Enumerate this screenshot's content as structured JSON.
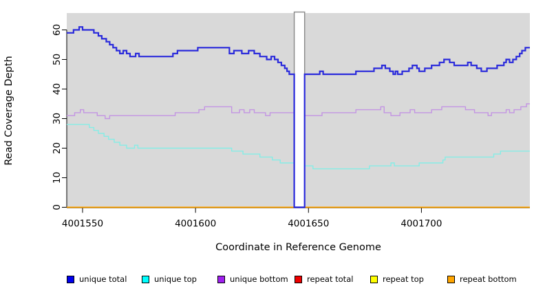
{
  "figure": {
    "xlabel": "Coordinate in Reference Genome",
    "ylabel": "Read Coverage Depth"
  },
  "legend": {
    "items": [
      {
        "label": "unique total",
        "color": "#0000EE"
      },
      {
        "label": "unique top",
        "color": "#00FFFF"
      },
      {
        "label": "unique bottom",
        "color": "#A020F0"
      },
      {
        "label": "repeat total",
        "color": "#EE0000"
      },
      {
        "label": "repeat top",
        "color": "#FFFF00"
      },
      {
        "label": "repeat bottom",
        "color": "#FFA500"
      }
    ]
  },
  "chart_data": {
    "type": "line",
    "subtype": "step",
    "title": "",
    "xlabel": "Coordinate in Reference Genome",
    "ylabel": "Read Coverage Depth",
    "xlim": [
      4001543,
      4001748
    ],
    "ylim": [
      0,
      65.7
    ],
    "x_ticks": [
      4001550,
      4001600,
      4001650,
      4001700
    ],
    "y_ticks": [
      0,
      10,
      20,
      30,
      40,
      50,
      60
    ],
    "grid": false,
    "legend_position": "bottom",
    "plot_background": "#D9D9D9",
    "gap_region": {
      "x_from": 4001643.7,
      "x_to": 4001648.3,
      "fill": "#FFFFFF",
      "border": "#8C8C8C"
    },
    "series": [
      {
        "name": "unique total",
        "color": "#2929DB",
        "width": 2.2,
        "points": [
          [
            4001543,
            59
          ],
          [
            4001546,
            60
          ],
          [
            4001548.5,
            61
          ],
          [
            4001550,
            60
          ],
          [
            4001555,
            59
          ],
          [
            4001557,
            58
          ],
          [
            4001558.5,
            57
          ],
          [
            4001560.5,
            56
          ],
          [
            4001562,
            55
          ],
          [
            4001563.5,
            54
          ],
          [
            4001565,
            53
          ],
          [
            4001566.5,
            52
          ],
          [
            4001568,
            53
          ],
          [
            4001569.5,
            52
          ],
          [
            4001571,
            51
          ],
          [
            4001573.5,
            52
          ],
          [
            4001575,
            51
          ],
          [
            4001590,
            52
          ],
          [
            4001592,
            53
          ],
          [
            4001601,
            54
          ],
          [
            4001615,
            52
          ],
          [
            4001617,
            53
          ],
          [
            4001620.5,
            52
          ],
          [
            4001623.5,
            53
          ],
          [
            4001626,
            52
          ],
          [
            4001628.5,
            51
          ],
          [
            4001631.5,
            50
          ],
          [
            4001633.5,
            51
          ],
          [
            4001635,
            50
          ],
          [
            4001636.5,
            49
          ],
          [
            4001638,
            48
          ],
          [
            4001639.5,
            47
          ],
          [
            4001640.5,
            46
          ],
          [
            4001641.5,
            45
          ],
          [
            4001643.7,
            0
          ],
          [
            4001648.3,
            45
          ],
          [
            4001655,
            46
          ],
          [
            4001656.5,
            45
          ],
          [
            4001671,
            46
          ],
          [
            4001679,
            47
          ],
          [
            4001682.5,
            48
          ],
          [
            4001684,
            47
          ],
          [
            4001686,
            46
          ],
          [
            4001687.5,
            45
          ],
          [
            4001688.5,
            46
          ],
          [
            4001689.5,
            45
          ],
          [
            4001691.5,
            46
          ],
          [
            4001694.5,
            47
          ],
          [
            4001696,
            48
          ],
          [
            4001698,
            47
          ],
          [
            4001699,
            46
          ],
          [
            4001701.5,
            47
          ],
          [
            4001704.5,
            48
          ],
          [
            4001708,
            49
          ],
          [
            4001710,
            50
          ],
          [
            4001712.5,
            49
          ],
          [
            4001714.5,
            48
          ],
          [
            4001720.5,
            49
          ],
          [
            4001722,
            48
          ],
          [
            4001724.5,
            47
          ],
          [
            4001726.5,
            46
          ],
          [
            4001729,
            47
          ],
          [
            4001733.5,
            48
          ],
          [
            4001736.5,
            49
          ],
          [
            4001737.5,
            50
          ],
          [
            4001739,
            49
          ],
          [
            4001740.5,
            50
          ],
          [
            4001742,
            51
          ],
          [
            4001743.5,
            52
          ],
          [
            4001744.5,
            53
          ],
          [
            4001746,
            54
          ]
        ]
      },
      {
        "name": "unique top",
        "color": "#85EDE6",
        "width": 1.4,
        "points": [
          [
            4001543,
            28
          ],
          [
            4001553,
            27
          ],
          [
            4001555,
            26
          ],
          [
            4001557,
            25
          ],
          [
            4001559.5,
            24
          ],
          [
            4001561.5,
            23
          ],
          [
            4001564,
            22
          ],
          [
            4001566.5,
            21
          ],
          [
            4001569.5,
            20
          ],
          [
            4001573,
            21
          ],
          [
            4001574.5,
            20
          ],
          [
            4001616,
            19
          ],
          [
            4001621,
            18
          ],
          [
            4001628.5,
            17
          ],
          [
            4001634,
            16
          ],
          [
            4001637.5,
            15
          ],
          [
            4001643.7,
            0
          ],
          [
            4001648.3,
            14
          ],
          [
            4001652,
            13
          ],
          [
            4001677,
            14
          ],
          [
            4001686.5,
            15
          ],
          [
            4001688,
            14
          ],
          [
            4001699,
            15
          ],
          [
            4001709.5,
            16
          ],
          [
            4001710.5,
            17
          ],
          [
            4001732,
            18
          ],
          [
            4001735,
            19
          ]
        ]
      },
      {
        "name": "unique bottom",
        "color": "#C394E3",
        "width": 1.4,
        "points": [
          [
            4001543,
            31
          ],
          [
            4001546.5,
            32
          ],
          [
            4001549,
            33
          ],
          [
            4001550.5,
            32
          ],
          [
            4001556.5,
            31
          ],
          [
            4001560,
            30
          ],
          [
            4001562,
            31
          ],
          [
            4001591,
            32
          ],
          [
            4001601.5,
            33
          ],
          [
            4001604,
            34
          ],
          [
            4001616,
            32
          ],
          [
            4001619.5,
            33
          ],
          [
            4001621.5,
            32
          ],
          [
            4001624,
            33
          ],
          [
            4001626,
            32
          ],
          [
            4001631,
            31
          ],
          [
            4001633,
            32
          ],
          [
            4001643.7,
            0
          ],
          [
            4001648.3,
            31
          ],
          [
            4001656,
            32
          ],
          [
            4001671,
            33
          ],
          [
            4001682,
            34
          ],
          [
            4001683.5,
            32
          ],
          [
            4001686.5,
            31
          ],
          [
            4001690.5,
            32
          ],
          [
            4001695,
            33
          ],
          [
            4001697,
            32
          ],
          [
            4001704.5,
            33
          ],
          [
            4001709,
            34
          ],
          [
            4001719.5,
            33
          ],
          [
            4001723.5,
            32
          ],
          [
            4001729.5,
            31
          ],
          [
            4001731,
            32
          ],
          [
            4001737.5,
            33
          ],
          [
            4001739,
            32
          ],
          [
            4001741,
            33
          ],
          [
            4001744,
            34
          ],
          [
            4001746.5,
            35
          ]
        ]
      },
      {
        "name": "repeat total",
        "color": "#EE0000",
        "width": 1.2,
        "points": [
          [
            4001543,
            0
          ]
        ]
      },
      {
        "name": "repeat top",
        "color": "#FFFF00",
        "width": 1.2,
        "points": [
          [
            4001543,
            0
          ]
        ]
      },
      {
        "name": "repeat bottom",
        "color": "#FFA500",
        "width": 1.8,
        "points": [
          [
            4001543,
            0
          ]
        ]
      }
    ]
  }
}
